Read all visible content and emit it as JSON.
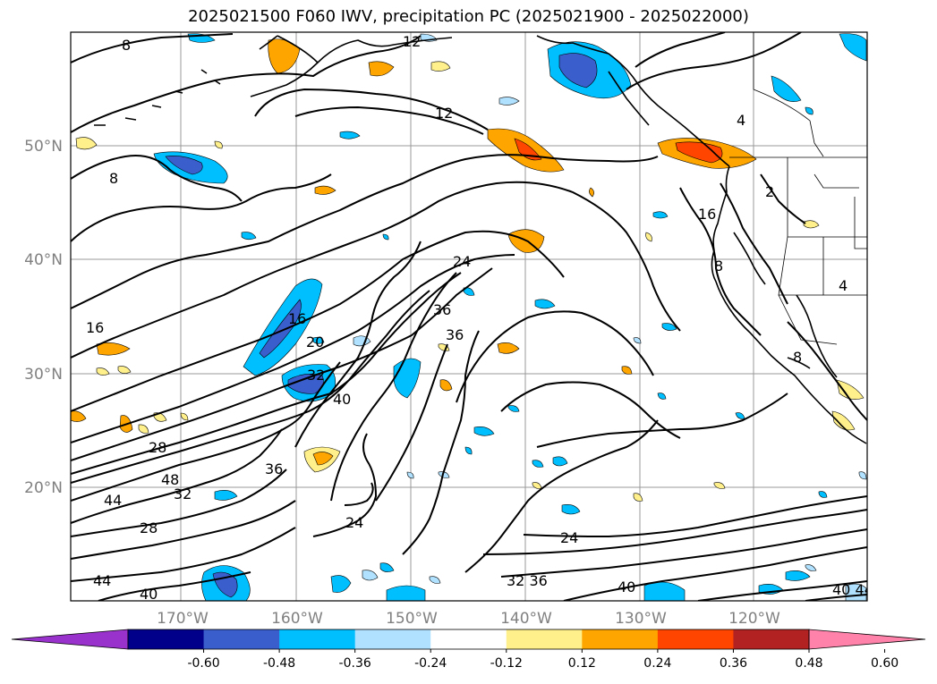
{
  "title": "2025021500 F060 IWV, precipitation PC (2025021900 - 2025022000)",
  "map": {
    "lat_ticks": [
      "50°N",
      "40°N",
      "30°N",
      "20°N"
    ],
    "lon_ticks": [
      "170°W",
      "160°W",
      "150°W",
      "140°W",
      "130°W",
      "120°W"
    ],
    "contour_labels": [
      "8",
      "12",
      "8",
      "12",
      "4",
      "16",
      "2",
      "16",
      "24",
      "16",
      "20",
      "36",
      "36",
      "32",
      "40",
      "28",
      "48",
      "44",
      "32",
      "28",
      "36",
      "24",
      "24",
      "32 36",
      "40",
      "44",
      "40",
      "4",
      "8",
      "8",
      "40 44"
    ]
  },
  "colorbar": {
    "colors": [
      "#9932cc",
      "#00008b",
      "#3a5fcd",
      "#00bfff",
      "#b0e2ff",
      "#ffffff",
      "#fff08c",
      "#ffa500",
      "#ff4500",
      "#b22222",
      "#ff82ab"
    ],
    "ticks": [
      "-0.60",
      "-0.48",
      "-0.36",
      "-0.24",
      "-0.12",
      "0.12",
      "0.24",
      "0.36",
      "0.48",
      "0.60"
    ]
  }
}
